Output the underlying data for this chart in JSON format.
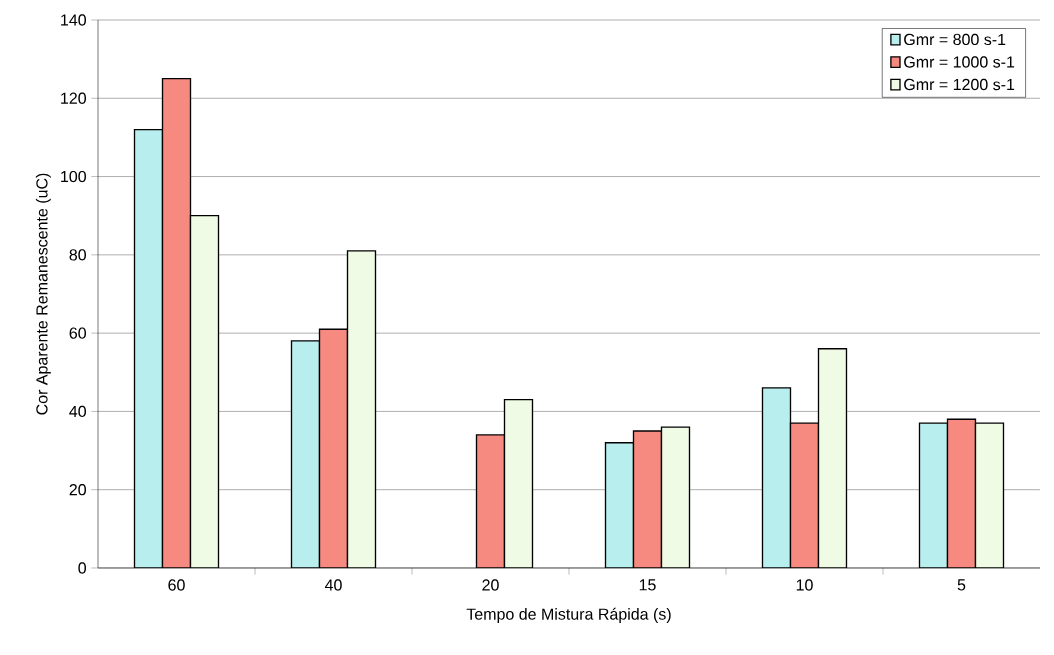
{
  "chart_data": {
    "type": "bar",
    "xlabel": "Tempo de Mistura Rápida (s)",
    "ylabel": "Cor Aparente Remanescente (uC)",
    "categories": [
      "60",
      "40",
      "20",
      "15",
      "10",
      "5"
    ],
    "series": [
      {
        "name": "Gmr = 800 s-1",
        "color": "#b8eeee",
        "values": [
          112,
          58,
          null,
          32,
          46,
          37
        ]
      },
      {
        "name": "Gmr = 1000 s-1",
        "color": "#f78a80",
        "values": [
          125,
          61,
          34,
          35,
          37,
          38
        ]
      },
      {
        "name": "Gmr = 1200 s-1",
        "color": "#f0fbe6",
        "values": [
          90,
          81,
          43,
          36,
          56,
          37
        ]
      }
    ],
    "ylim": [
      0,
      140
    ],
    "yticks": [
      0,
      20,
      40,
      60,
      80,
      100,
      120,
      140
    ],
    "grid": "y",
    "legend": "top right"
  }
}
